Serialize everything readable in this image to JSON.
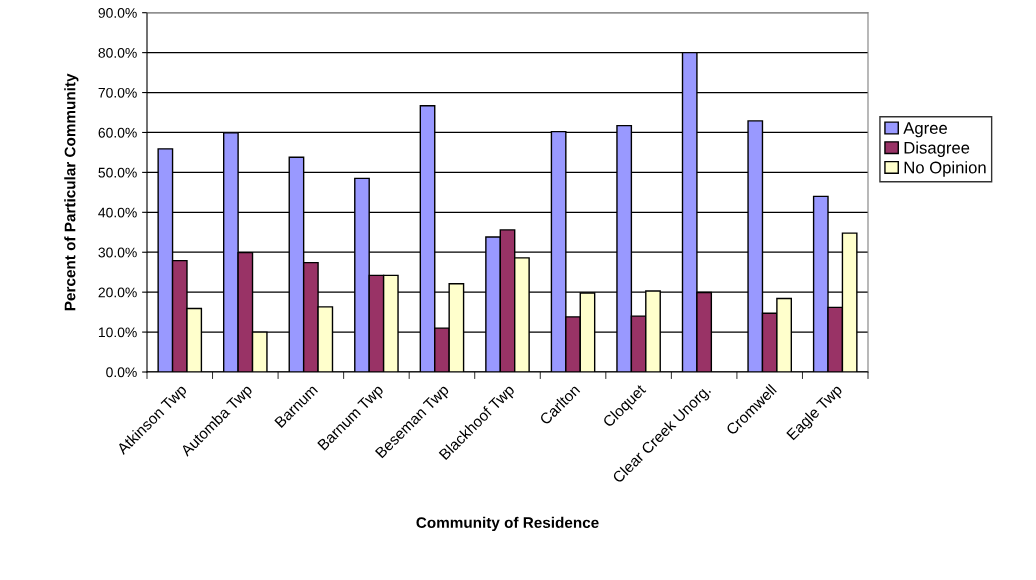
{
  "chart_data": {
    "type": "bar",
    "xlabel": "Community of Residence",
    "ylabel": "Percent of Particular Community",
    "categories": [
      "Atkinson Twp",
      "Automba Twp",
      "Barnum",
      "Barnum Twp",
      "Beseman Twp",
      "Blackhoof Twp",
      "Carlton",
      "Cloquet",
      "Clear Creek Unorg.",
      "Cromwell",
      "Eagle Twp"
    ],
    "series": [
      {
        "name": "Agree",
        "color": "#9999ff",
        "values": [
          55.9,
          59.9,
          53.8,
          48.5,
          66.7,
          33.8,
          60.2,
          61.7,
          80.0,
          62.9,
          44.0
        ]
      },
      {
        "name": "Disagree",
        "color": "#993366",
        "values": [
          27.9,
          29.9,
          27.4,
          24.2,
          11.0,
          35.6,
          13.8,
          14.0,
          19.9,
          14.7,
          16.2
        ]
      },
      {
        "name": "No Opinion",
        "color": "#ffffcc",
        "values": [
          15.9,
          10.0,
          16.3,
          24.2,
          22.1,
          28.6,
          19.8,
          20.3,
          null,
          18.4,
          34.8
        ]
      }
    ],
    "ylim": [
      0,
      90
    ],
    "yticks": [
      {
        "value": 0,
        "label": "0.0%"
      },
      {
        "value": 10,
        "label": "10.0%"
      },
      {
        "value": 20,
        "label": "20.0%"
      },
      {
        "value": 30,
        "label": "30.0%"
      },
      {
        "value": 40,
        "label": "40.0%"
      },
      {
        "value": 50,
        "label": "50.0%"
      },
      {
        "value": 60,
        "label": "60.0%"
      },
      {
        "value": 70,
        "label": "70.0%"
      },
      {
        "value": 80,
        "label": "80.0%"
      },
      {
        "value": 90,
        "label": "90.0%"
      }
    ],
    "grid": "y",
    "legend": "right"
  }
}
